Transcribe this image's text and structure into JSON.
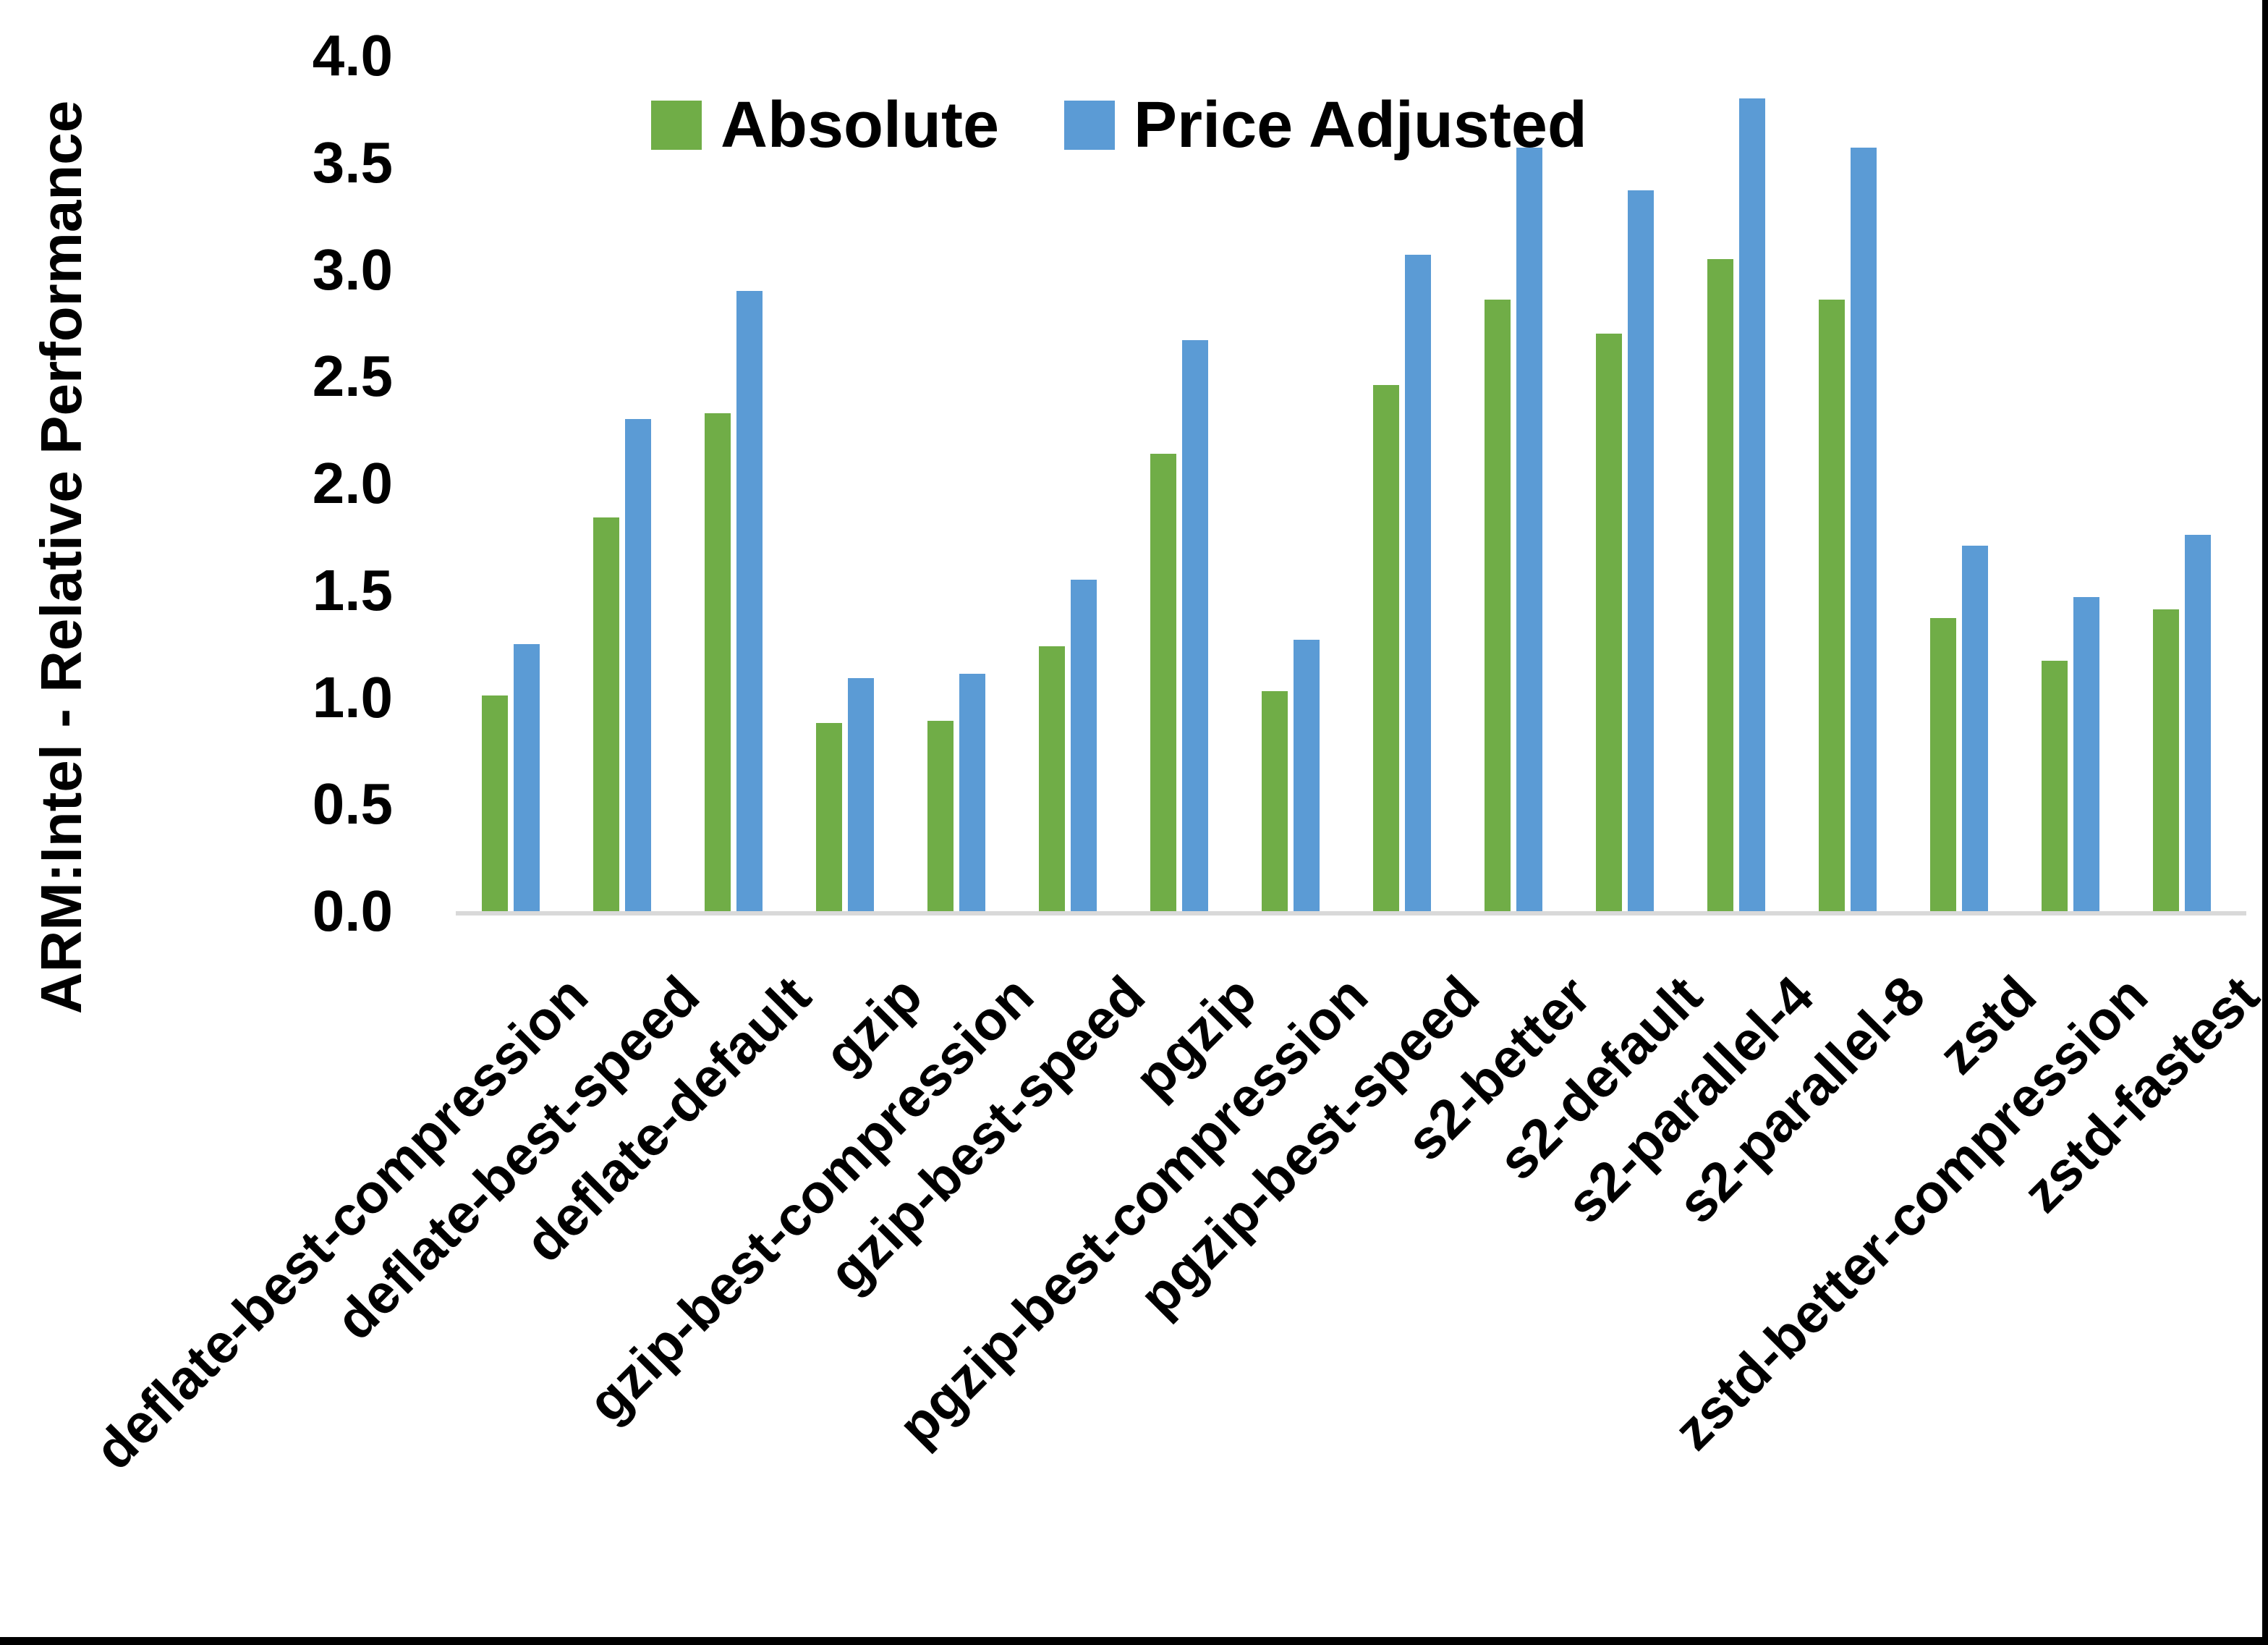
{
  "chart_data": {
    "type": "bar",
    "title": "",
    "xlabel": "",
    "ylabel": "ARM:Intel - Relative Performance",
    "ylim": [
      0.0,
      4.0
    ],
    "ytick_step": 0.5,
    "yticks": [
      "4.0",
      "3.5",
      "3.0",
      "2.5",
      "2.0",
      "1.5",
      "1.0",
      "0.5",
      "0.0"
    ],
    "grid": false,
    "legend_position": "top-center",
    "categories": [
      "deflate-best-compression",
      "deflate-best-speed",
      "deflate-default",
      "gzip",
      "gzip-best-compression",
      "gzip-best-speed",
      "pgzip",
      "pgzip-best-compression",
      "pgzip-best-speed",
      "s2-better",
      "s2-default",
      "s2-parallel-4",
      "s2-parallel-8",
      "zstd",
      "zstd-better-compression",
      "zstd-fastest"
    ],
    "series": [
      {
        "name": "Absolute",
        "color": "#70AD47",
        "values": [
          1.01,
          1.84,
          2.33,
          0.88,
          0.89,
          1.24,
          2.14,
          1.03,
          2.46,
          2.86,
          2.7,
          3.05,
          2.86,
          1.37,
          1.17,
          1.41
        ]
      },
      {
        "name": "Price Adjusted",
        "color": "#5B9BD5",
        "values": [
          1.25,
          2.3,
          2.9,
          1.09,
          1.11,
          1.55,
          2.67,
          1.27,
          3.07,
          3.57,
          3.37,
          3.8,
          3.57,
          1.71,
          1.47,
          1.76
        ]
      }
    ]
  },
  "colors": {
    "background": "#FFFFFF",
    "axis_line": "#D9D9D9",
    "text": "#000000",
    "frame": "#000000"
  }
}
